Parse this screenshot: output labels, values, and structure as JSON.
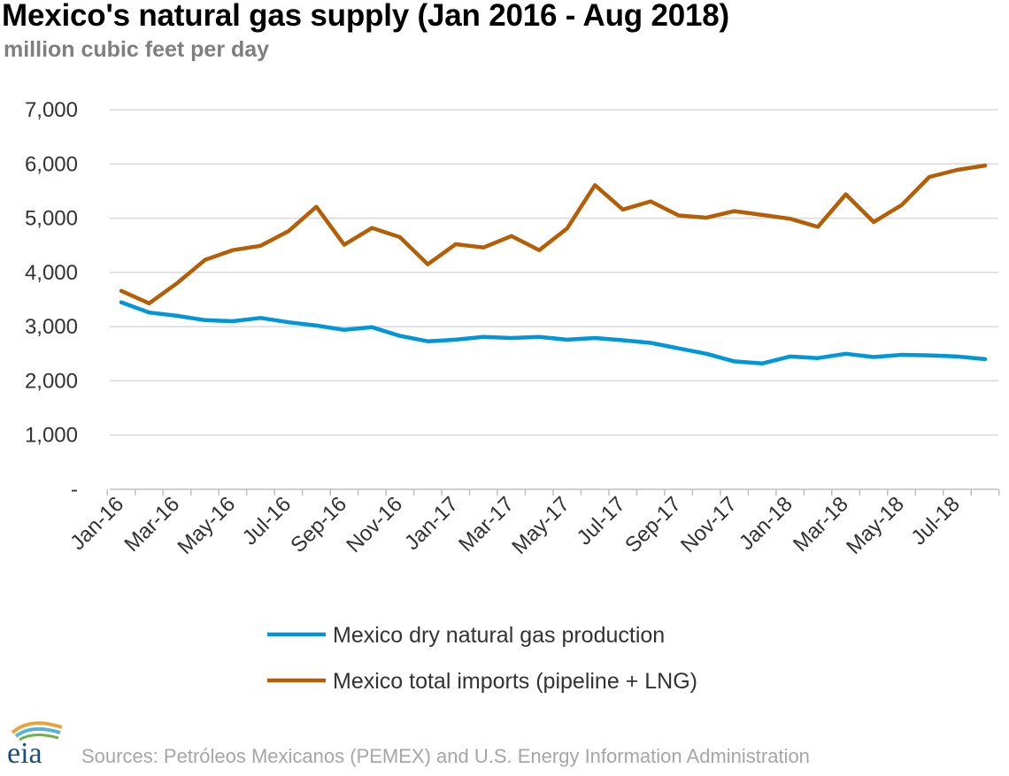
{
  "title": "Mexico's natural gas supply (Jan 2016 - Aug 2018)",
  "subtitle": "million cubic feet per day",
  "source": "Sources: Petróleos Mexicanos (PEMEX) and U.S. Energy Information Administration",
  "logo_text": "eia",
  "colors": {
    "production": "#0096d7",
    "imports": "#b45f06",
    "grid": "#d9d9d9",
    "axis": "#bfbfbf"
  },
  "chart_data": {
    "type": "line",
    "title": "Mexico's natural gas supply (Jan 2016 - Aug 2018)",
    "ylabel": "million cubic feet per day",
    "ylim": [
      0,
      7000
    ],
    "yticks": [
      "-",
      "1,000",
      "2,000",
      "3,000",
      "4,000",
      "5,000",
      "6,000",
      "7,000"
    ],
    "grid": true,
    "legend_position": "bottom",
    "x": [
      "Jan-16",
      "Feb-16",
      "Mar-16",
      "Apr-16",
      "May-16",
      "Jun-16",
      "Jul-16",
      "Aug-16",
      "Sep-16",
      "Oct-16",
      "Nov-16",
      "Dec-16",
      "Jan-17",
      "Feb-17",
      "Mar-17",
      "Apr-17",
      "May-17",
      "Jun-17",
      "Jul-17",
      "Aug-17",
      "Sep-17",
      "Oct-17",
      "Nov-17",
      "Dec-17",
      "Jan-18",
      "Feb-18",
      "Mar-18",
      "Apr-18",
      "May-18",
      "Jun-18",
      "Jul-18",
      "Aug-18"
    ],
    "xtick_labels": [
      "Jan-16",
      "Mar-16",
      "May-16",
      "Jul-16",
      "Sep-16",
      "Nov-16",
      "Jan-17",
      "Mar-17",
      "May-17",
      "Jul-17",
      "Sep-17",
      "Nov-17",
      "Jan-18",
      "Mar-18",
      "May-18",
      "Jul-18"
    ],
    "series": [
      {
        "name": "Mexico dry natural gas production",
        "color": "#0096d7",
        "values": [
          3450,
          3260,
          3200,
          3120,
          3100,
          3160,
          3080,
          3020,
          2940,
          2990,
          2830,
          2730,
          2760,
          2810,
          2790,
          2810,
          2760,
          2790,
          2750,
          2700,
          2600,
          2500,
          2360,
          2320,
          2450,
          2420,
          2500,
          2440,
          2480,
          2470,
          2450,
          2400
        ]
      },
      {
        "name": "Mexico total imports (pipeline + LNG)",
        "color": "#b45f06",
        "values": [
          3660,
          3430,
          3800,
          4230,
          4410,
          4490,
          4760,
          5210,
          4510,
          4820,
          4650,
          4150,
          4520,
          4460,
          4670,
          4410,
          4810,
          5610,
          5160,
          5310,
          5050,
          5010,
          5130,
          5060,
          4990,
          4840,
          5440,
          4930,
          5240,
          5760,
          5890,
          5970
        ]
      }
    ]
  }
}
